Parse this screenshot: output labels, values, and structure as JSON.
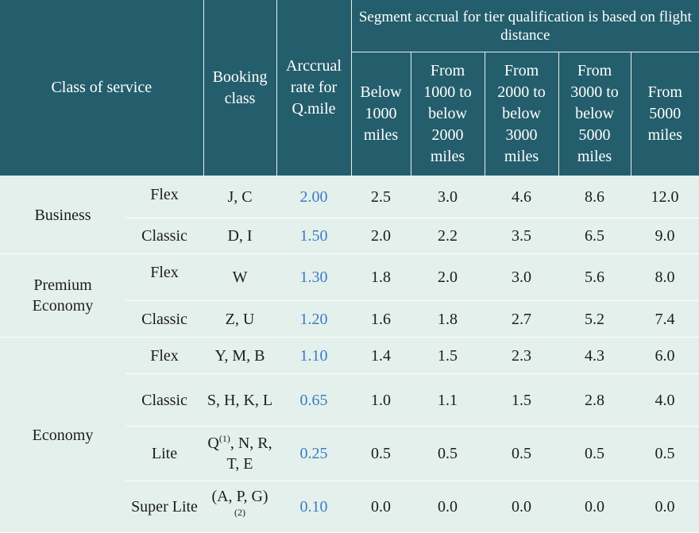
{
  "header": {
    "class_of_service": "Class of service",
    "booking_class": "Booking class",
    "accrual_rate": "Arccrual rate for Q.mile",
    "segment_group": "Segment accrual for tier qualification is based on flight distance",
    "distance_bands": [
      "Below 1000 miles",
      "From 1000 to below 2000 miles",
      "From 2000 to below 3000 miles",
      "From 3000 to below 5000 miles",
      "From 5000 miles"
    ]
  },
  "rows": [
    {
      "cabin": "Business",
      "fare": "Flex",
      "booking": "J, C",
      "rate": "2.00",
      "values": [
        "2.5",
        "3.0",
        "4.6",
        "8.6",
        "12.0"
      ]
    },
    {
      "fare": "Classic",
      "booking": "D, I",
      "rate": "1.50",
      "values": [
        "2.0",
        "2.2",
        "3.5",
        "6.5",
        "9.0"
      ]
    },
    {
      "cabin": "Premium Economy",
      "fare": "Flex",
      "booking": "W",
      "rate": "1.30",
      "values": [
        "1.8",
        "2.0",
        "3.0",
        "5.6",
        "8.0"
      ]
    },
    {
      "fare": "Classic",
      "booking": "Z, U",
      "rate": "1.20",
      "values": [
        "1.6",
        "1.8",
        "2.7",
        "5.2",
        "7.4"
      ]
    },
    {
      "cabin": "Economy",
      "fare": "Flex",
      "booking": "Y, M, B",
      "rate": "1.10",
      "values": [
        "1.4",
        "1.5",
        "2.3",
        "4.3",
        "6.0"
      ]
    },
    {
      "fare": "Classic",
      "booking": "S, H, K, L",
      "rate": "0.65",
      "values": [
        "1.0",
        "1.1",
        "1.5",
        "2.8",
        "4.0"
      ]
    },
    {
      "fare": "Lite",
      "booking_pre": "Q",
      "booking_sup": "(1)",
      "booking_post": ", N, R, T, E",
      "rate": "0.25",
      "values": [
        "0.5",
        "0.5",
        "0.5",
        "0.5",
        "0.5"
      ]
    },
    {
      "fare": "Super Lite",
      "booking_pre": "(A, P, G)",
      "booking_sup": " (2)",
      "booking_post": "",
      "rate": "0.10",
      "values": [
        "0.0",
        "0.0",
        "0.0",
        "0.0",
        "0.0"
      ]
    }
  ]
}
